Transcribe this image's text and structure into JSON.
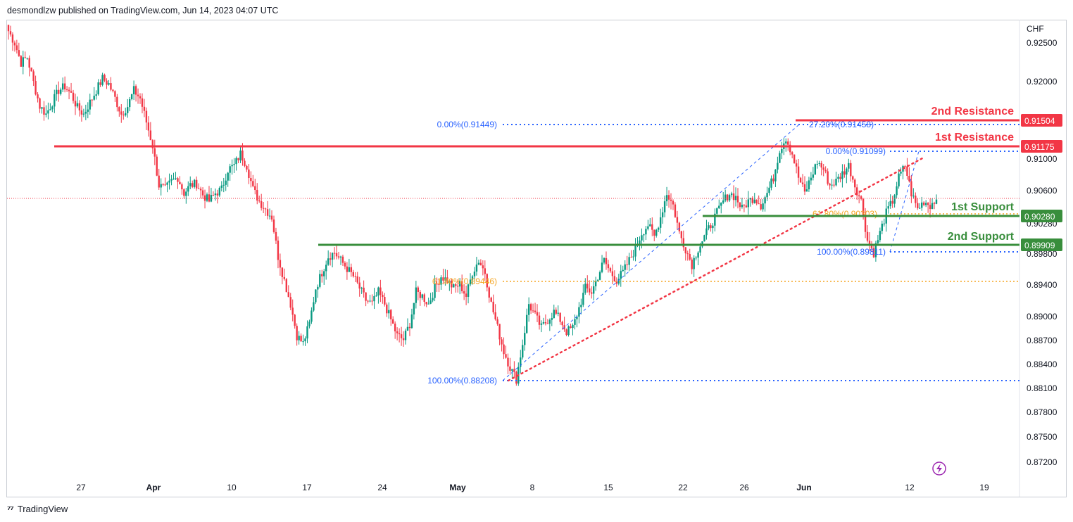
{
  "header": {
    "publisher_line": "desmondlzw published on TradingView.com, Jun 14, 2023 04:07 UTC"
  },
  "footer": {
    "brand": "TradingView",
    "logo_icon": "tradingview-logo-icon"
  },
  "chart_data": {
    "type": "candlestick",
    "title": "",
    "currency": "CHF",
    "grid": false,
    "ylim": [
      0.87,
      0.9275
    ],
    "x_tick_labels": [
      "27",
      "Apr",
      "10",
      "17",
      "24",
      "May",
      "8",
      "15",
      "22",
      "26",
      "Jun",
      "12",
      "19"
    ],
    "y_tick_labels": [
      "0.92500",
      "0.92000",
      "0.91000",
      "0.90600",
      "0.90280",
      "0.89800",
      "0.89400",
      "0.89000",
      "0.88700",
      "0.88400",
      "0.88100",
      "0.87800",
      "0.87500",
      "0.87200"
    ],
    "last_price": 0.9052,
    "levels": [
      {
        "name": "2nd Resistance",
        "value": "0.91504",
        "color": "#f23645"
      },
      {
        "name": "1st Resistance",
        "value": "0.91175",
        "color": "#f23645"
      },
      {
        "name": "1st Support",
        "value": "0.90280",
        "color": "#388e3c"
      },
      {
        "name": "2nd Support",
        "value": "0.89909",
        "color": "#388e3c"
      }
    ],
    "fib_labels": [
      {
        "text": "0.00%(0.91449)",
        "value": 0.91449,
        "color": "#2962ff"
      },
      {
        "text": "100.00%(0.88208)",
        "value": 0.88208,
        "color": "#2962ff"
      },
      {
        "text": "61.80%(0.89446)",
        "value": 0.89446,
        "color": "#f5a623"
      },
      {
        "text": "27.20%(0.91458)",
        "value": 0.91458,
        "color": "#2962ff"
      },
      {
        "text": "0.00%(0.91099)",
        "value": 0.91099,
        "color": "#2962ff"
      },
      {
        "text": "100.00%(0.89811)",
        "value": 0.89811,
        "color": "#2962ff"
      },
      {
        "text": "61.80%(0.90303)",
        "value": 0.90303,
        "color": "#f5a623"
      }
    ],
    "colors": {
      "up": "#089981",
      "down": "#f23645",
      "support": "#388e3c",
      "resistance": "#f23645",
      "fib_blue": "#2962ff",
      "fib_orange": "#f5a623"
    },
    "candles_close_anchors": [
      0.9265,
      0.925,
      0.9225,
      0.9232,
      0.92,
      0.917,
      0.916,
      0.9175,
      0.919,
      0.9195,
      0.9185,
      0.9168,
      0.916,
      0.9175,
      0.919,
      0.9205,
      0.9198,
      0.918,
      0.916,
      0.917,
      0.919,
      0.918,
      0.915,
      0.912,
      0.907,
      0.9065,
      0.9075,
      0.908,
      0.906,
      0.907,
      0.9072,
      0.9058,
      0.905,
      0.906,
      0.9065,
      0.909,
      0.9095,
      0.911,
      0.9095,
      0.9065,
      0.905,
      0.904,
      0.903,
      0.898,
      0.895,
      0.892,
      0.888,
      0.887,
      0.8895,
      0.894,
      0.896,
      0.898,
      0.8985,
      0.8975,
      0.8965,
      0.8955,
      0.894,
      0.8925,
      0.892,
      0.8935,
      0.892,
      0.89,
      0.888,
      0.8875,
      0.8895,
      0.8935,
      0.893,
      0.892,
      0.894,
      0.8955,
      0.895,
      0.894,
      0.8945,
      0.893,
      0.896,
      0.8975,
      0.896,
      0.892,
      0.889,
      0.886,
      0.884,
      0.8825,
      0.887,
      0.892,
      0.8905,
      0.889,
      0.89,
      0.891,
      0.89,
      0.8885,
      0.889,
      0.8915,
      0.894,
      0.8935,
      0.8955,
      0.8975,
      0.896,
      0.895,
      0.896,
      0.8975,
      0.899,
      0.901,
      0.902,
      0.9005,
      0.903,
      0.906,
      0.9045,
      0.901,
      0.899,
      0.897,
      0.899,
      0.9005,
      0.902,
      0.9035,
      0.905,
      0.906,
      0.9055,
      0.904,
      0.905,
      0.9055,
      0.9045,
      0.906,
      0.908,
      0.9115,
      0.913,
      0.911,
      0.908,
      0.906,
      0.908,
      0.91,
      0.909,
      0.907,
      0.9075,
      0.9085,
      0.9095,
      0.907,
      0.905,
      0.9,
      0.8985,
      0.901,
      0.9035,
      0.905,
      0.908,
      0.9095,
      0.906,
      0.904,
      0.905,
      0.9045,
      0.9052
    ]
  }
}
